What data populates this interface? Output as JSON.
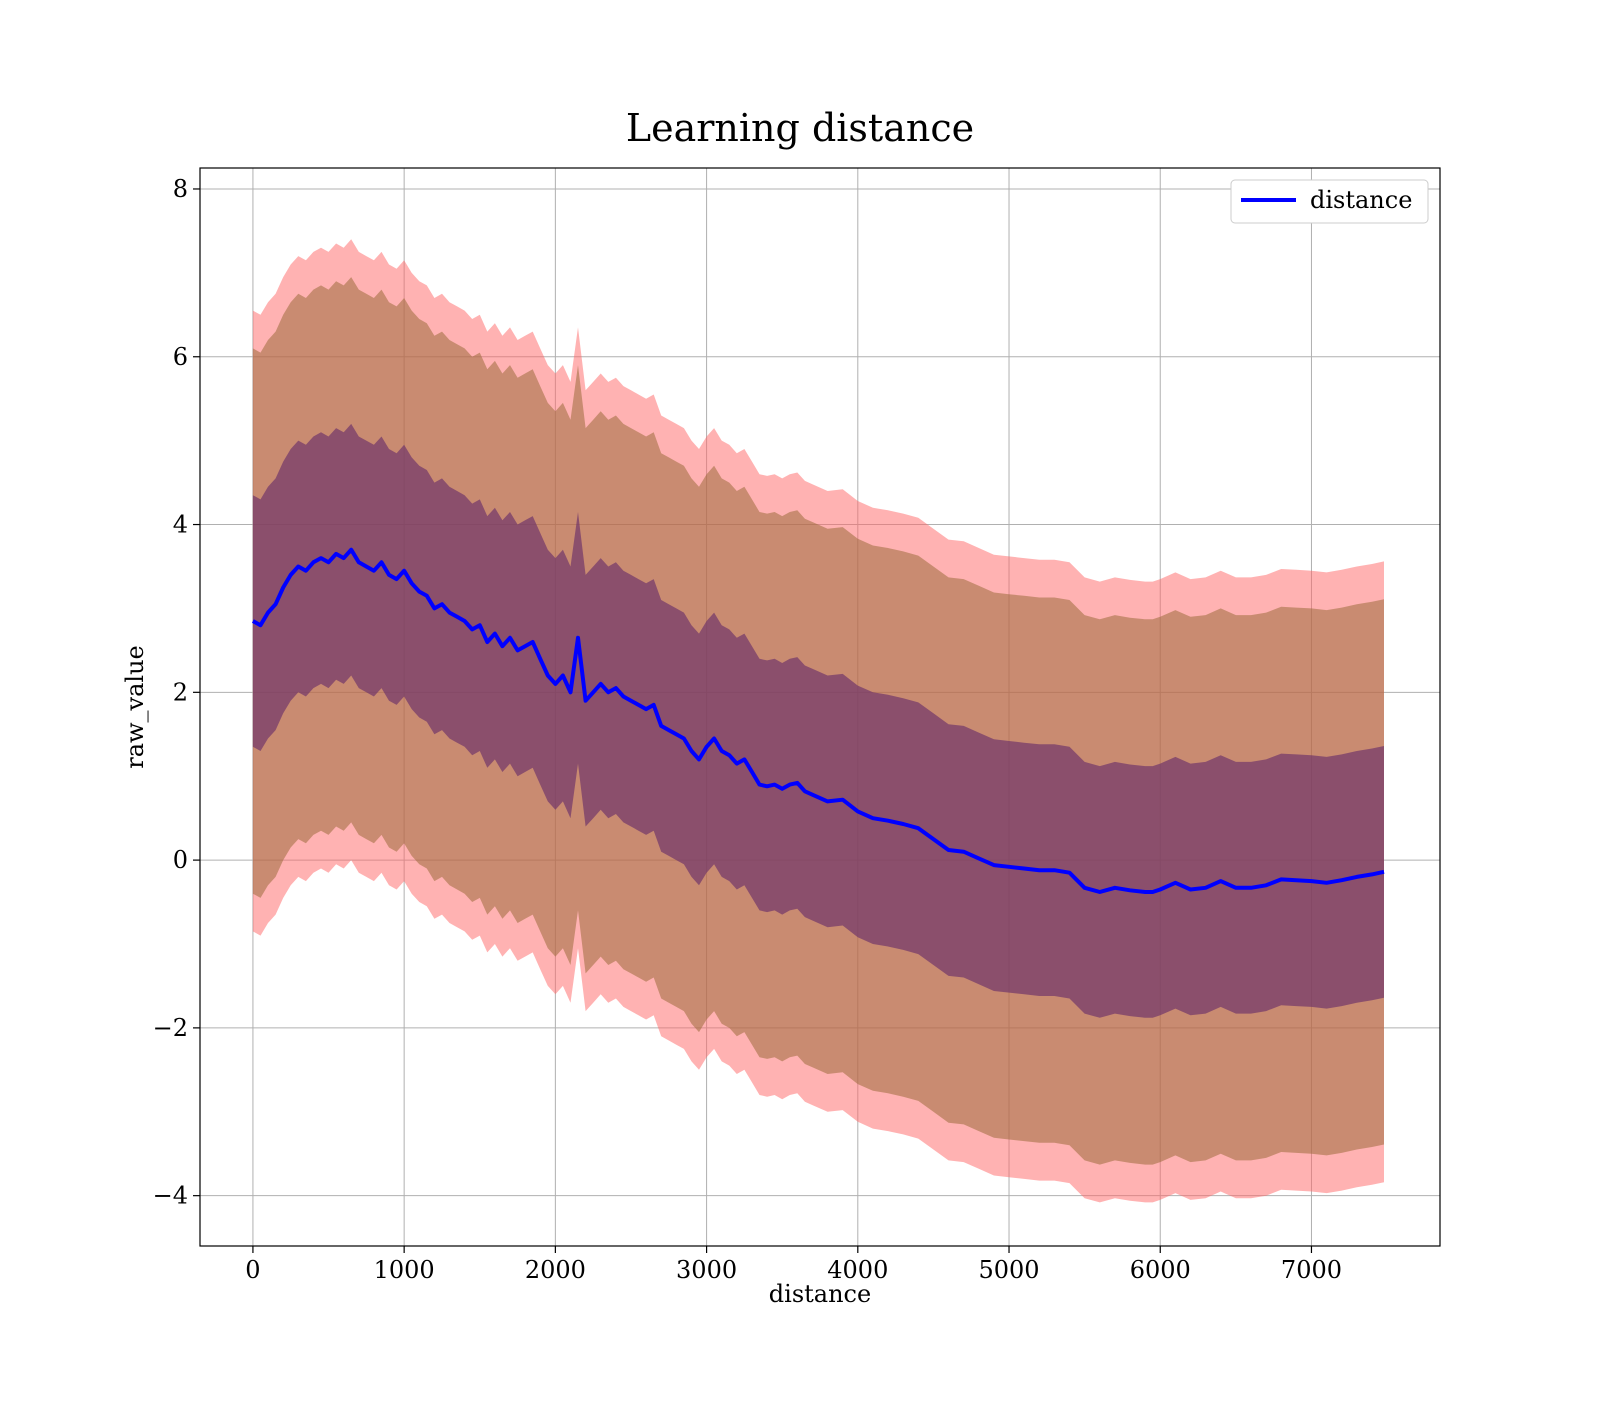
{
  "chart_data": {
    "type": "line",
    "title": "Learning distance",
    "xlabel": "distance",
    "ylabel": "raw_value",
    "xlim": [
      -350,
      7850
    ],
    "ylim": [
      -4.6,
      8.25
    ],
    "grid": true,
    "legend_position": "top-right",
    "x_ticks": [
      0,
      1000,
      2000,
      3000,
      4000,
      5000,
      6000,
      7000
    ],
    "x_tick_labels": [
      "0",
      "1000",
      "2000",
      "3000",
      "4000",
      "5000",
      "6000",
      "7000"
    ],
    "y_ticks": [
      -4,
      -2,
      0,
      2,
      4,
      6,
      8
    ],
    "y_tick_labels": [
      "−4",
      "−2",
      "0",
      "2",
      "4",
      "6",
      "8"
    ],
    "colors": {
      "line": "#0000ff",
      "outer_band": "#ff6666",
      "outer_band_inner": "#9c6b3c",
      "inner_band": "#6a2f6a",
      "grid": "#b0b0b0"
    },
    "series": [
      {
        "name": "distance",
        "x": [
          0,
          50,
          100,
          150,
          200,
          250,
          300,
          350,
          400,
          450,
          500,
          550,
          600,
          650,
          700,
          750,
          800,
          850,
          900,
          950,
          1000,
          1050,
          1100,
          1150,
          1200,
          1250,
          1300,
          1350,
          1400,
          1450,
          1500,
          1550,
          1600,
          1650,
          1700,
          1750,
          1800,
          1850,
          1900,
          1950,
          2000,
          2050,
          2100,
          2150,
          2200,
          2250,
          2300,
          2350,
          2400,
          2450,
          2500,
          2550,
          2600,
          2650,
          2700,
          2750,
          2800,
          2850,
          2900,
          2950,
          3000,
          3050,
          3100,
          3150,
          3200,
          3250,
          3300,
          3350,
          3400,
          3450,
          3500,
          3550,
          3600,
          3650,
          3700,
          3800,
          3900,
          4000,
          4100,
          4200,
          4300,
          4400,
          4500,
          4600,
          4700,
          4800,
          4900,
          5000,
          5100,
          5200,
          5300,
          5400,
          5500,
          5600,
          5700,
          5800,
          5900,
          5950,
          6000,
          6100,
          6200,
          6300,
          6400,
          6500,
          6600,
          6700,
          6800,
          6900,
          7000,
          7100,
          7200,
          7300,
          7400,
          7480
        ],
        "values": [
          2.85,
          2.8,
          2.95,
          3.05,
          3.25,
          3.4,
          3.5,
          3.45,
          3.55,
          3.6,
          3.55,
          3.65,
          3.6,
          3.7,
          3.55,
          3.5,
          3.45,
          3.55,
          3.4,
          3.35,
          3.45,
          3.3,
          3.2,
          3.15,
          3.0,
          3.05,
          2.95,
          2.9,
          2.85,
          2.75,
          2.8,
          2.6,
          2.7,
          2.55,
          2.65,
          2.5,
          2.55,
          2.6,
          2.4,
          2.2,
          2.1,
          2.2,
          2.0,
          2.65,
          1.9,
          2.0,
          2.1,
          2.0,
          2.05,
          1.95,
          1.9,
          1.85,
          1.8,
          1.85,
          1.6,
          1.55,
          1.5,
          1.45,
          1.3,
          1.2,
          1.35,
          1.45,
          1.3,
          1.25,
          1.15,
          1.2,
          1.05,
          0.9,
          0.88,
          0.9,
          0.85,
          0.9,
          0.92,
          0.82,
          0.78,
          0.7,
          0.72,
          0.58,
          0.5,
          0.47,
          0.43,
          0.38,
          0.25,
          0.12,
          0.1,
          0.02,
          -0.06,
          -0.08,
          -0.1,
          -0.12,
          -0.12,
          -0.15,
          -0.33,
          -0.38,
          -0.33,
          -0.36,
          -0.38,
          -0.38,
          -0.35,
          -0.27,
          -0.35,
          -0.33,
          -0.25,
          -0.33,
          -0.33,
          -0.3,
          -0.23,
          -0.24,
          -0.25,
          -0.27,
          -0.24,
          -0.2,
          -0.17,
          -0.14
        ]
      }
    ],
    "bands": [
      {
        "kind": "outer",
        "sigma": 3.7
      },
      {
        "kind": "outer_inner",
        "sigma": 3.25
      },
      {
        "kind": "inner",
        "sigma": 1.5
      }
    ]
  }
}
